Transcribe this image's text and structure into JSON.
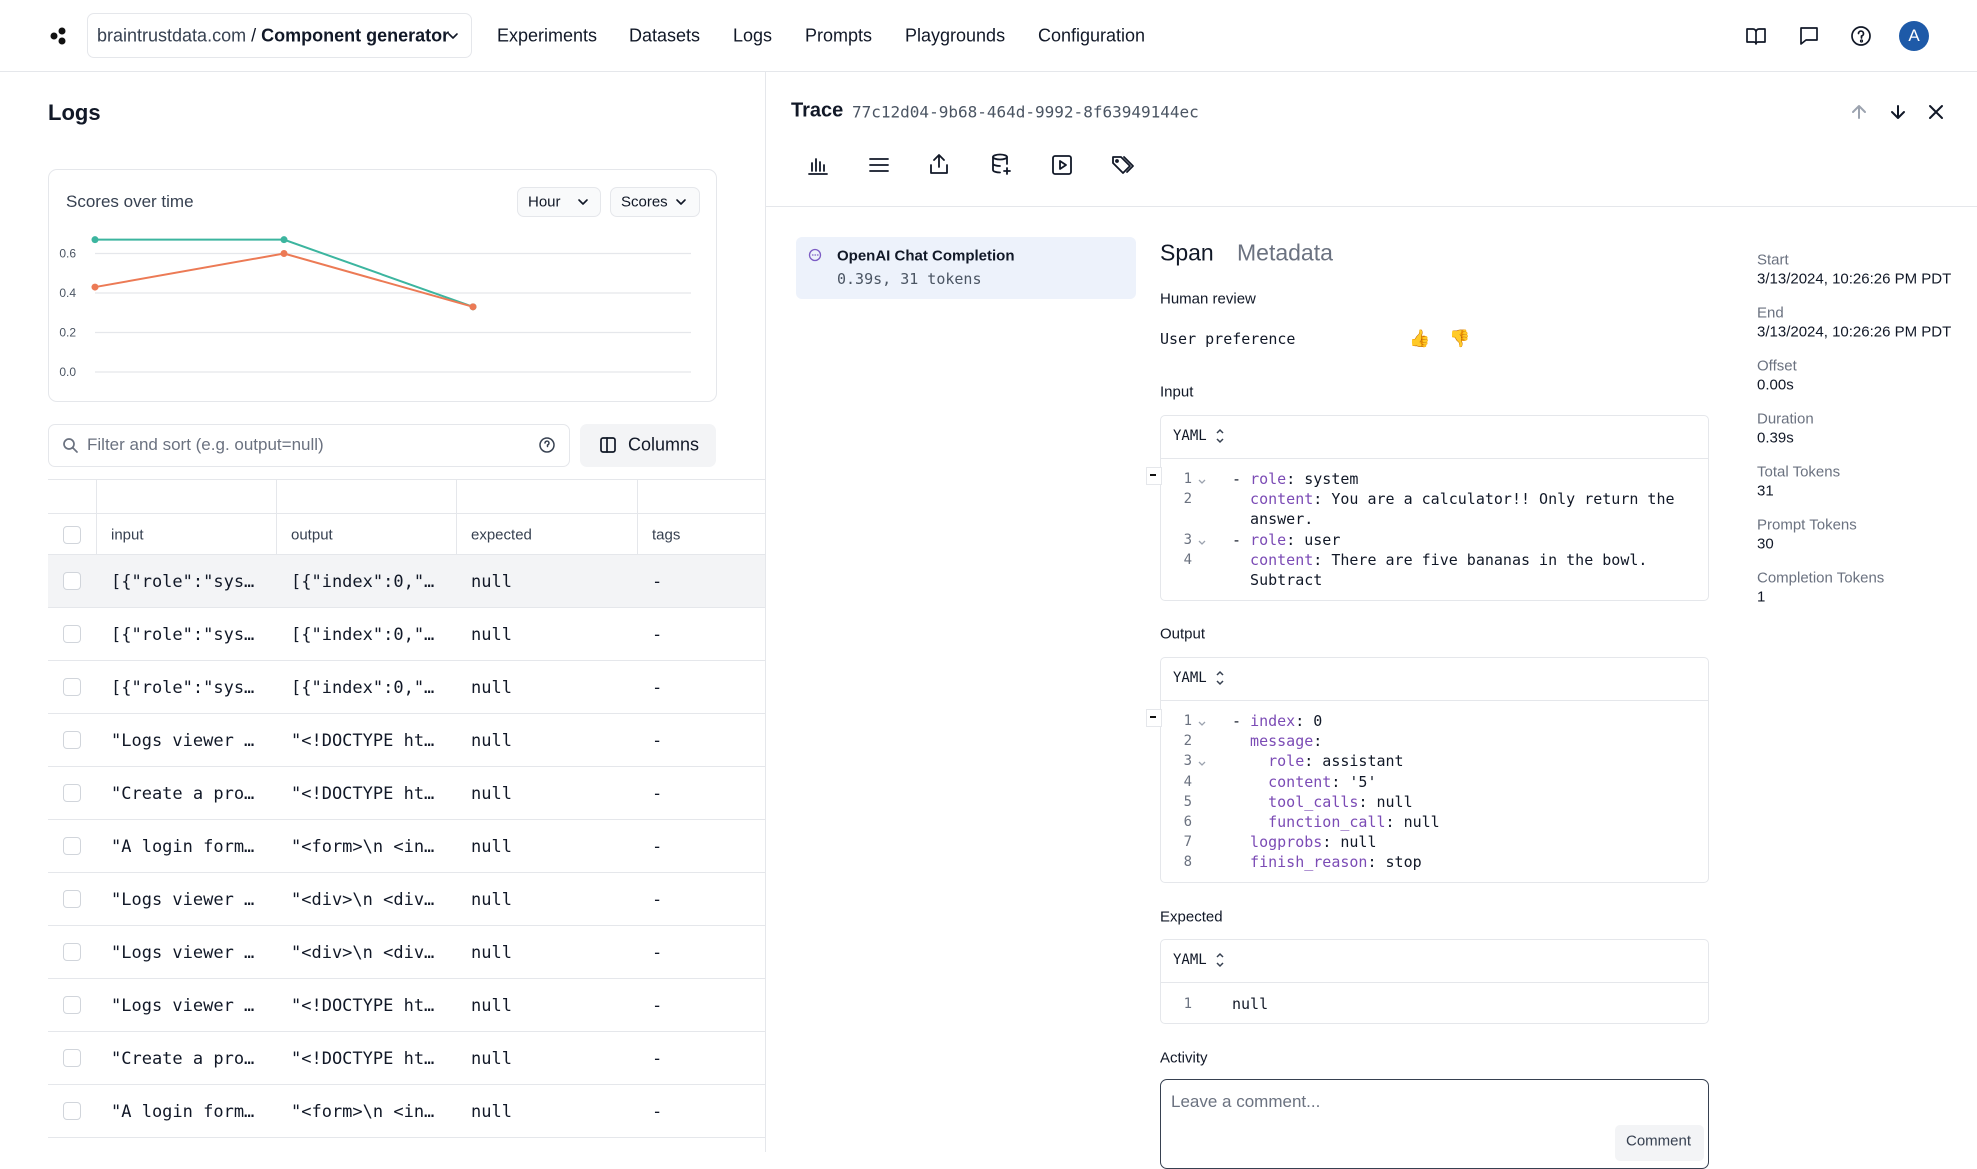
{
  "topbar": {
    "project": "braintrustdata.com",
    "separator": "/",
    "page": "Component generator",
    "nav": [
      "Experiments",
      "Datasets",
      "Logs",
      "Prompts",
      "Playgrounds",
      "Configuration"
    ],
    "avatar": "A"
  },
  "logs": {
    "title": "Logs",
    "interval": "Hour",
    "metric": "Scores",
    "filter_placeholder": "Filter and sort (e.g. output=null)",
    "columns_button": "Columns",
    "table": {
      "headers": [
        "input",
        "output",
        "expected",
        "tags"
      ],
      "rows": [
        [
          "[{\"role\":\"sys…",
          "[{\"index\":0,\"…",
          "null",
          "-"
        ],
        [
          "[{\"role\":\"sys…",
          "[{\"index\":0,\"…",
          "null",
          "-"
        ],
        [
          "[{\"role\":\"sys…",
          "[{\"index\":0,\"…",
          "null",
          "-"
        ],
        [
          "\"Logs viewer …",
          "\"<!DOCTYPE ht…",
          "null",
          "-"
        ],
        [
          "\"Create a pro…",
          "\"<!DOCTYPE ht…",
          "null",
          "-"
        ],
        [
          "\"A login form…",
          "\"<form>\\n <in…",
          "null",
          "-"
        ],
        [
          "\"Logs viewer …",
          "\"<div>\\n <div…",
          "null",
          "-"
        ],
        [
          "\"Logs viewer …",
          "\"<div>\\n <div…",
          "null",
          "-"
        ],
        [
          "\"Logs viewer …",
          "\"<!DOCTYPE ht…",
          "null",
          "-"
        ],
        [
          "\"Create a pro…",
          "\"<!DOCTYPE ht…",
          "null",
          "-"
        ],
        [
          "\"A login form…",
          "\"<form>\\n <in…",
          "null",
          "-"
        ]
      ]
    }
  },
  "chart_data": {
    "type": "line",
    "title": "Scores over time",
    "categories": [
      null,
      null,
      null
    ],
    "series": [
      {
        "color": "#3cb59f",
        "values": [
          0.67,
          0.67,
          0.33
        ]
      },
      {
        "color": "#ec7a55",
        "values": [
          0.43,
          0.6,
          0.33
        ]
      }
    ],
    "ylim": [
      0,
      0.7
    ],
    "yticks": [
      {
        "value": 0,
        "label": "0.0"
      },
      0.2,
      0.4,
      0.6
    ],
    "grid": true
  },
  "trace": {
    "title": "Trace",
    "id": "77c12d04-9b68-464d-9992-8f63949144ec",
    "span_item": {
      "name": "OpenAI Chat Completion",
      "detail": "0.39s, 31 tokens"
    },
    "tabs": [
      "Span",
      "Metadata"
    ],
    "human_review": {
      "title": "Human review",
      "label": "User preference",
      "up": "👍",
      "down": "👎"
    },
    "input": {
      "title": "Input",
      "format": "YAML",
      "lines": [
        {
          "number": 1,
          "fold": true,
          "prefix": "- ",
          "key": "role",
          "value": ": system"
        },
        {
          "number": 2,
          "key": "  content",
          "value": ": You are a calculator!! Only return the"
        },
        {
          "number": null,
          "value": "  answer."
        },
        {
          "number": 3,
          "fold": true,
          "prefix": "- ",
          "key": "role",
          "value": ": user"
        },
        {
          "number": 4,
          "key": "  content",
          "value": ": There are five bananas in the bowl."
        },
        {
          "number": null,
          "value": "  Subtract"
        }
      ]
    },
    "output": {
      "title": "Output",
      "format": "YAML",
      "lines": [
        {
          "number": 1,
          "fold": true,
          "prefix": "- ",
          "key": "index",
          "value": ": 0"
        },
        {
          "number": 2,
          "key": "  message",
          "value": ":"
        },
        {
          "number": 3,
          "fold": true,
          "key": "    role",
          "value": ": assistant"
        },
        {
          "number": 4,
          "key": "    content",
          "value": ": '5'"
        },
        {
          "number": 5,
          "key": "    tool_calls",
          "value": ": null"
        },
        {
          "number": 6,
          "key": "    function_call",
          "value": ": null"
        },
        {
          "number": 7,
          "key": "  logprobs",
          "value": ": null"
        },
        {
          "number": 8,
          "key": "  finish_reason",
          "value": ": stop"
        }
      ]
    },
    "expected": {
      "title": "Expected",
      "format": "YAML",
      "lines": [
        {
          "number": 1,
          "value": "null"
        }
      ]
    },
    "activity": {
      "title": "Activity",
      "placeholder": "Leave a comment...",
      "button": "Comment"
    },
    "metadata": [
      {
        "label": "Start",
        "value": "3/13/2024, 10:26:26 PM PDT"
      },
      {
        "label": "End",
        "value": "3/13/2024, 10:26:26 PM PDT"
      },
      {
        "label": "Offset",
        "value": "0.00s"
      },
      {
        "label": "Duration",
        "value": "0.39s"
      },
      {
        "label": "Total Tokens",
        "value": "31"
      },
      {
        "label": "Prompt Tokens",
        "value": "30"
      },
      {
        "label": "Completion Tokens",
        "value": "1"
      }
    ]
  }
}
